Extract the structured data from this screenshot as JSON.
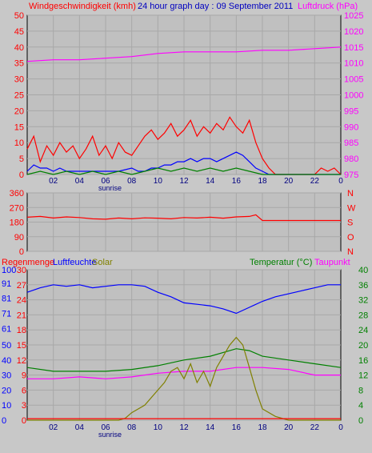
{
  "page": {
    "background": "#c8c8c8",
    "plot_background": "#c0c0c0"
  },
  "chart_data": [
    {
      "type": "line",
      "id": "wind",
      "title_left": "Windgeschwindigkeit (kmh)",
      "title_center": "24 hour graph day : 09 September 2011",
      "title_right": "Luftdruck (hPa)",
      "y_left": {
        "ticks": [
          0,
          5,
          10,
          15,
          20,
          25,
          30,
          35,
          40,
          45,
          50
        ],
        "range": [
          0,
          50
        ],
        "color": "#ff0000"
      },
      "y_right": {
        "ticks": [
          975,
          980,
          985,
          990,
          995,
          1000,
          1005,
          1010,
          1015,
          1020,
          1025
        ],
        "range": [
          975,
          1025
        ],
        "color": "#ff00ff"
      },
      "x": {
        "ticks": [
          "02",
          "04",
          "06",
          "08",
          "10",
          "12",
          "14",
          "16",
          "18",
          "20",
          "22",
          "0"
        ],
        "annotation": "sunrise",
        "range": [
          0,
          24
        ]
      },
      "series": [
        {
          "key": "gust",
          "color": "#ff0000",
          "values": [
            [
              0,
              8
            ],
            [
              0.5,
              12
            ],
            [
              1,
              4
            ],
            [
              1.5,
              9
            ],
            [
              2,
              6
            ],
            [
              2.5,
              10
            ],
            [
              3,
              7
            ],
            [
              3.5,
              9
            ],
            [
              4,
              5
            ],
            [
              4.5,
              8
            ],
            [
              5,
              12
            ],
            [
              5.5,
              6
            ],
            [
              6,
              9
            ],
            [
              6.5,
              5
            ],
            [
              7,
              10
            ],
            [
              7.5,
              7
            ],
            [
              8,
              6
            ],
            [
              8.5,
              9
            ],
            [
              9,
              12
            ],
            [
              9.5,
              14
            ],
            [
              10,
              11
            ],
            [
              10.5,
              13
            ],
            [
              11,
              16
            ],
            [
              11.5,
              12
            ],
            [
              12,
              14
            ],
            [
              12.5,
              17
            ],
            [
              13,
              12
            ],
            [
              13.5,
              15
            ],
            [
              14,
              13
            ],
            [
              14.5,
              16
            ],
            [
              15,
              14
            ],
            [
              15.5,
              18
            ],
            [
              16,
              15
            ],
            [
              16.5,
              13
            ],
            [
              17,
              17
            ],
            [
              17.5,
              10
            ],
            [
              18,
              5
            ],
            [
              18.5,
              2
            ],
            [
              19,
              0
            ],
            [
              20,
              0
            ],
            [
              22,
              0
            ],
            [
              22.5,
              2
            ],
            [
              23,
              1
            ],
            [
              23.5,
              2
            ],
            [
              24,
              0
            ]
          ]
        },
        {
          "key": "avg",
          "color": "#0000ff",
          "values": [
            [
              0,
              1
            ],
            [
              0.5,
              3
            ],
            [
              1,
              2
            ],
            [
              1.5,
              2
            ],
            [
              2,
              1
            ],
            [
              2.5,
              2
            ],
            [
              3,
              1
            ],
            [
              4,
              1
            ],
            [
              5,
              1
            ],
            [
              6,
              1
            ],
            [
              7,
              1
            ],
            [
              8,
              2
            ],
            [
              8.5,
              1
            ],
            [
              9,
              1
            ],
            [
              9.5,
              2
            ],
            [
              10,
              2
            ],
            [
              10.5,
              3
            ],
            [
              11,
              3
            ],
            [
              11.5,
              4
            ],
            [
              12,
              4
            ],
            [
              12.5,
              5
            ],
            [
              13,
              4
            ],
            [
              13.5,
              5
            ],
            [
              14,
              5
            ],
            [
              14.5,
              4
            ],
            [
              15,
              5
            ],
            [
              15.5,
              6
            ],
            [
              16,
              7
            ],
            [
              16.5,
              6
            ],
            [
              17,
              4
            ],
            [
              17.5,
              2
            ],
            [
              18,
              1
            ],
            [
              18.5,
              0
            ],
            [
              19,
              0
            ],
            [
              24,
              0
            ]
          ]
        },
        {
          "key": "wind_green",
          "color": "#008000",
          "values": [
            [
              0,
              0
            ],
            [
              1,
              1
            ],
            [
              2,
              0
            ],
            [
              3,
              1
            ],
            [
              4,
              0
            ],
            [
              5,
              1
            ],
            [
              6,
              0
            ],
            [
              7,
              1
            ],
            [
              8,
              0
            ],
            [
              9,
              1
            ],
            [
              10,
              2
            ],
            [
              11,
              1
            ],
            [
              12,
              2
            ],
            [
              13,
              1
            ],
            [
              14,
              2
            ],
            [
              15,
              1
            ],
            [
              16,
              2
            ],
            [
              17,
              1
            ],
            [
              18,
              0
            ],
            [
              24,
              0
            ]
          ]
        },
        {
          "key": "pressure",
          "color": "#ff00ff",
          "axis": "right",
          "values": [
            [
              0,
              1010.5
            ],
            [
              2,
              1011
            ],
            [
              4,
              1011
            ],
            [
              6,
              1011.5
            ],
            [
              8,
              1012
            ],
            [
              10,
              1013
            ],
            [
              12,
              1013.5
            ],
            [
              14,
              1013.5
            ],
            [
              16,
              1013.5
            ],
            [
              18,
              1014
            ],
            [
              20,
              1014
            ],
            [
              22,
              1014.5
            ],
            [
              24,
              1015
            ]
          ]
        }
      ]
    },
    {
      "type": "line",
      "id": "direction",
      "y_left": {
        "ticks": [
          0,
          90,
          180,
          270,
          360
        ],
        "range": [
          0,
          360
        ],
        "color": "#ff0000"
      },
      "y_right": {
        "ticks": [
          "N",
          "W",
          "S",
          "O",
          "N"
        ],
        "color": "#ff0000"
      },
      "series": [
        {
          "key": "direction",
          "color": "#ff0000",
          "values": [
            [
              0,
              210
            ],
            [
              1,
              215
            ],
            [
              2,
              205
            ],
            [
              3,
              212
            ],
            [
              4,
              208
            ],
            [
              5,
              200
            ],
            [
              6,
              198
            ],
            [
              7,
              205
            ],
            [
              8,
              200
            ],
            [
              9,
              206
            ],
            [
              10,
              204
            ],
            [
              11,
              200
            ],
            [
              12,
              208
            ],
            [
              13,
              205
            ],
            [
              14,
              210
            ],
            [
              15,
              204
            ],
            [
              16,
              212
            ],
            [
              17,
              215
            ],
            [
              17.5,
              225
            ],
            [
              18,
              190
            ],
            [
              19,
              190
            ],
            [
              24,
              190
            ]
          ]
        }
      ]
    },
    {
      "type": "line",
      "id": "temp",
      "titles": {
        "rain": "Regenmenge",
        "hum": "Luftfeuchte",
        "solar": "Solar",
        "temp": "Temperatur (°C)",
        "dew": "Taupunkt"
      },
      "y_rain": {
        "ticks": [
          0,
          3,
          6,
          9,
          12,
          15,
          18,
          21,
          24,
          27,
          30
        ],
        "range": [
          0,
          30
        ],
        "color": "#ff0000"
      },
      "y_hum": {
        "ticks": [
          0,
          10,
          20,
          30,
          40,
          50,
          61,
          71,
          81,
          91,
          100
        ],
        "range": [
          0,
          100
        ],
        "color": "#0000ff"
      },
      "y_temp": {
        "ticks": [
          0,
          4,
          8,
          12,
          16,
          20,
          24,
          28,
          32,
          36,
          40
        ],
        "range": [
          0,
          40
        ],
        "color": "#008000"
      },
      "x": {
        "ticks": [
          "02",
          "04",
          "06",
          "08",
          "10",
          "12",
          "14",
          "16",
          "18",
          "20",
          "22",
          "0"
        ],
        "annotation": "sunrise",
        "range": [
          0,
          24
        ]
      },
      "series": [
        {
          "key": "humidity",
          "color": "#0000ff",
          "values": [
            [
              0,
              85
            ],
            [
              1,
              88
            ],
            [
              2,
              90
            ],
            [
              3,
              89
            ],
            [
              4,
              90
            ],
            [
              5,
              88
            ],
            [
              6,
              89
            ],
            [
              7,
              90
            ],
            [
              8,
              90
            ],
            [
              9,
              89
            ],
            [
              10,
              85
            ],
            [
              11,
              82
            ],
            [
              12,
              78
            ],
            [
              13,
              77
            ],
            [
              14,
              76
            ],
            [
              15,
              74
            ],
            [
              16,
              71
            ],
            [
              17,
              75
            ],
            [
              18,
              79
            ],
            [
              19,
              82
            ],
            [
              20,
              84
            ],
            [
              21,
              86
            ],
            [
              22,
              88
            ],
            [
              23,
              90
            ],
            [
              24,
              90
            ]
          ]
        },
        {
          "key": "temperature",
          "color": "#008000",
          "values": [
            [
              0,
              14
            ],
            [
              2,
              13
            ],
            [
              4,
              13
            ],
            [
              6,
              13
            ],
            [
              8,
              13.5
            ],
            [
              10,
              14.5
            ],
            [
              12,
              16
            ],
            [
              14,
              17
            ],
            [
              15,
              18
            ],
            [
              16,
              19
            ],
            [
              17,
              18.5
            ],
            [
              18,
              17
            ],
            [
              20,
              16
            ],
            [
              22,
              15
            ],
            [
              24,
              14
            ]
          ]
        },
        {
          "key": "dewpoint",
          "color": "#ff00ff",
          "values": [
            [
              0,
              11
            ],
            [
              2,
              11
            ],
            [
              4,
              11.5
            ],
            [
              6,
              11
            ],
            [
              8,
              11.5
            ],
            [
              10,
              12.5
            ],
            [
              12,
              13
            ],
            [
              14,
              13
            ],
            [
              16,
              14
            ],
            [
              18,
              14
            ],
            [
              20,
              13.5
            ],
            [
              22,
              12
            ],
            [
              24,
              12
            ]
          ]
        },
        {
          "key": "solar",
          "color": "#808000",
          "values": [
            [
              0,
              0
            ],
            [
              6,
              0
            ],
            [
              7,
              0
            ],
            [
              7.5,
              0.5
            ],
            [
              8,
              2
            ],
            [
              9,
              4
            ],
            [
              10,
              8
            ],
            [
              10.5,
              10
            ],
            [
              11,
              13
            ],
            [
              11.5,
              14
            ],
            [
              12,
              11
            ],
            [
              12.5,
              15
            ],
            [
              13,
              10
            ],
            [
              13.5,
              13
            ],
            [
              14,
              9
            ],
            [
              14.5,
              14
            ],
            [
              15,
              17
            ],
            [
              15.5,
              20
            ],
            [
              16,
              22
            ],
            [
              16.5,
              20
            ],
            [
              17,
              14
            ],
            [
              17.5,
              8
            ],
            [
              18,
              3
            ],
            [
              19,
              1
            ],
            [
              20,
              0
            ],
            [
              24,
              0
            ]
          ]
        },
        {
          "key": "rain",
          "color": "#ff0000",
          "values": [
            [
              0,
              0.3
            ],
            [
              24,
              0.3
            ]
          ]
        }
      ]
    }
  ]
}
